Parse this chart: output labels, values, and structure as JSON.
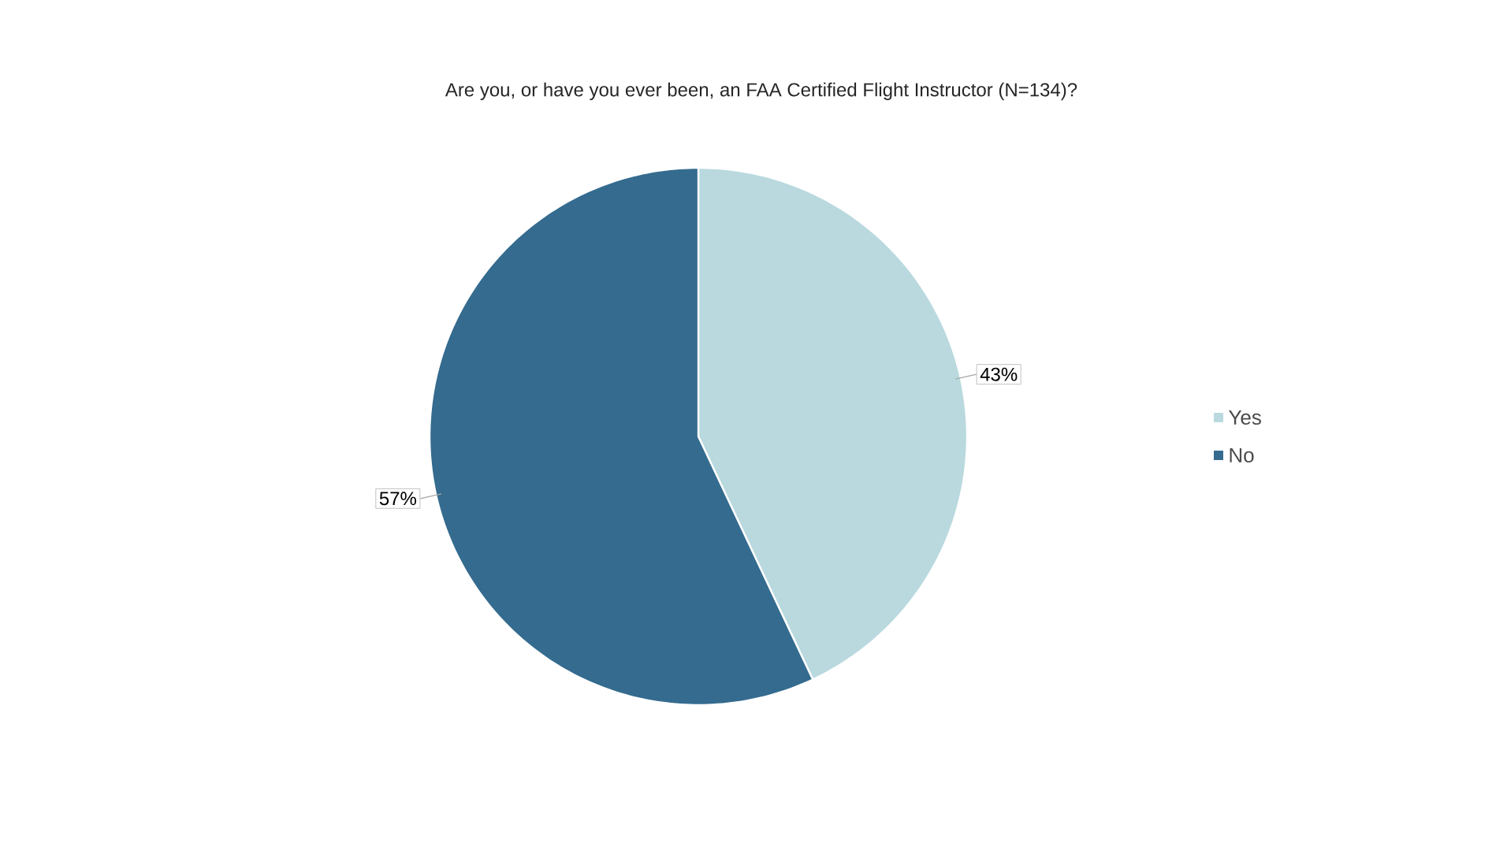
{
  "chart_data": {
    "type": "pie",
    "title": "Are you, or have you ever been, an FAA Certified Flight Instructor (N=134)?",
    "categories": [
      "Yes",
      "No"
    ],
    "values": [
      43,
      57
    ],
    "colors": [
      "#b9d9df",
      "#346b8f"
    ],
    "value_labels": [
      "43%",
      "57%"
    ],
    "legend": "right"
  }
}
